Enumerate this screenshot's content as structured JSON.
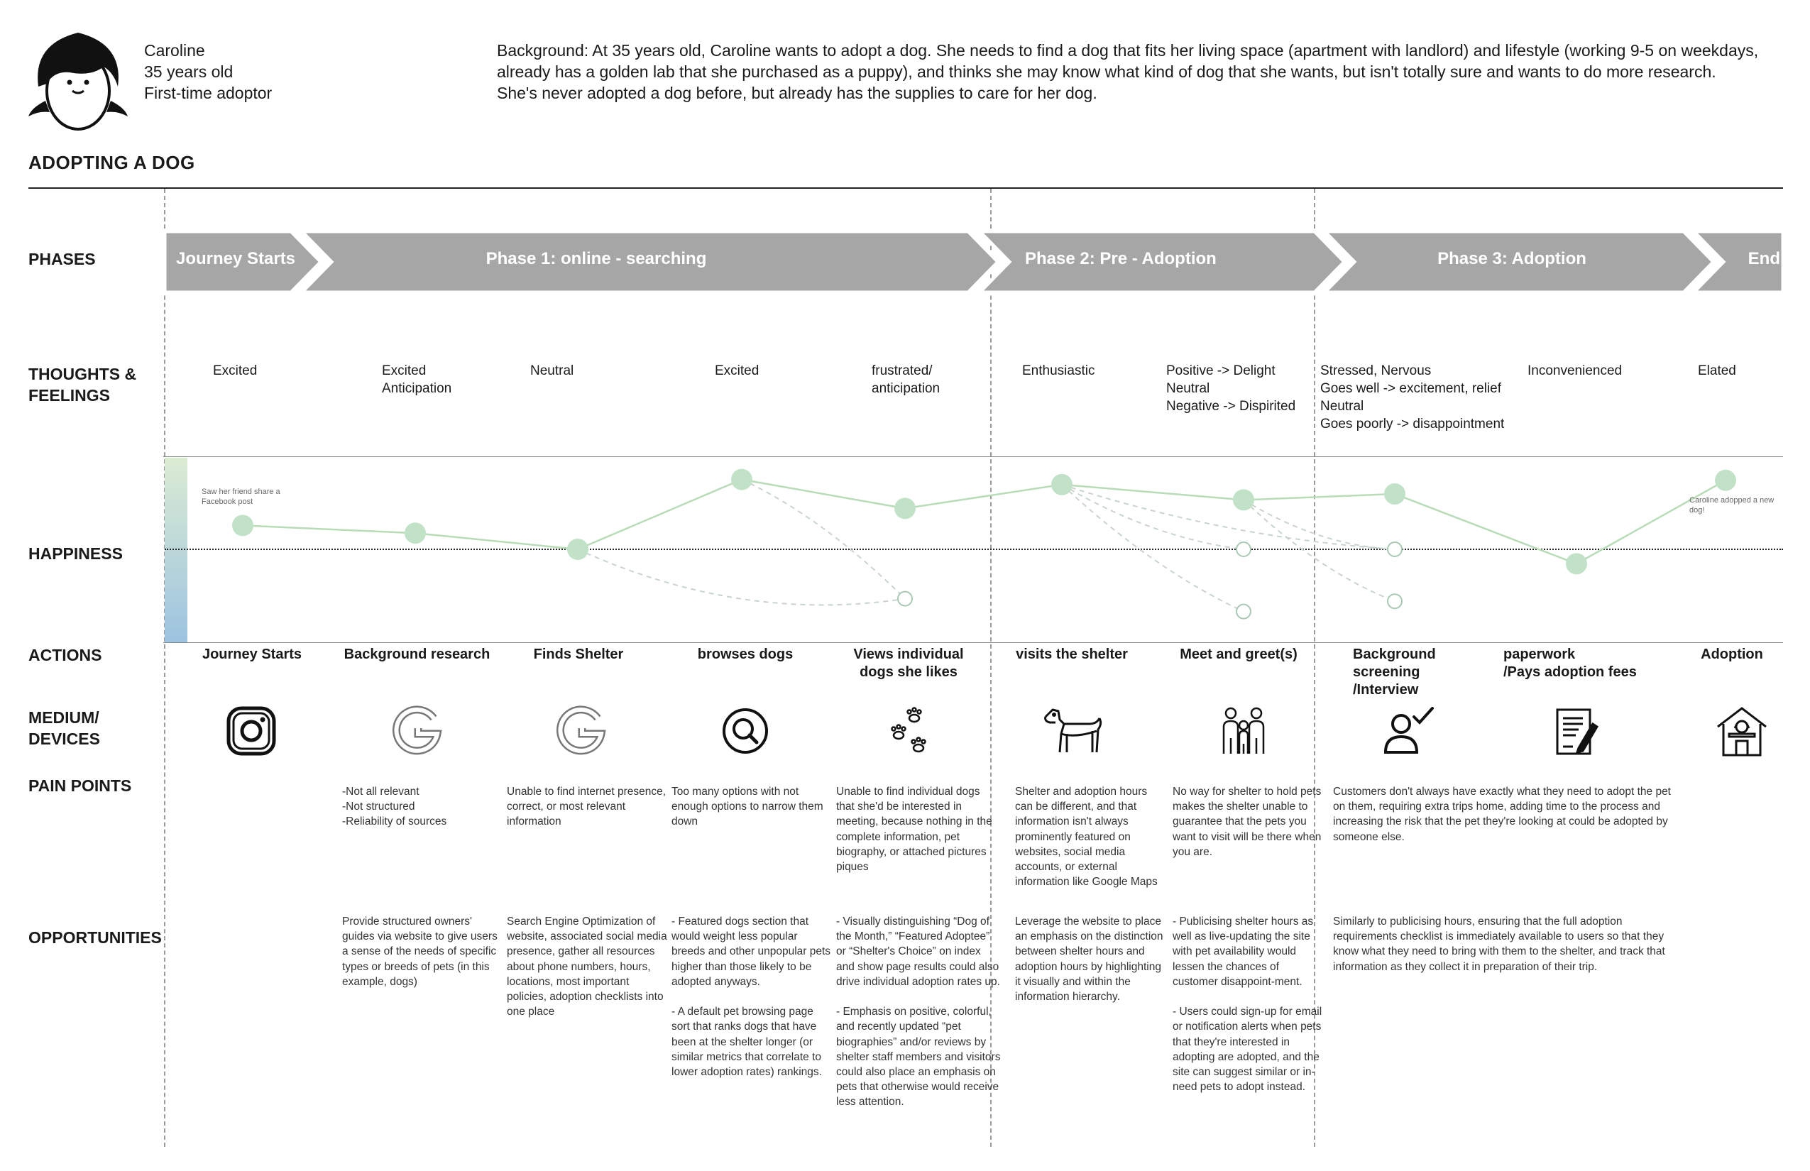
{
  "persona": {
    "name": "Caroline",
    "age": "35 years old",
    "role": "First-time adoptor",
    "background": "Background: At 35 years old, Caroline wants to adopt a dog. She needs to find a dog that fits her living space (apartment with landlord) and lifestyle (working 9-5 on weekdays, already has a golden lab that she purchased as a puppy), and thinks she may know what kind of dog that she wants, but isn't totally sure and wants to do more research. She's never adopted a dog before, but already has the supplies to care for her dog."
  },
  "title": "ADOPTING A DOG",
  "row_labels": {
    "phases": "PHASES",
    "thoughts_1": "THOUGHTS &",
    "thoughts_2": "FEELINGS",
    "happiness": "HAPPINESS",
    "actions": "ACTIONS",
    "medium_1": "MEDIUM/",
    "medium_2": "DEVICES",
    "pain_points": "PAIN POINTS",
    "opportunities": "OPPORTUNITIES"
  },
  "phases": [
    "Journey Starts",
    "Phase 1: online - searching",
    "Phase 2: Pre - Adoption",
    "Phase 3: Adoption",
    "End"
  ],
  "feelings": [
    "Excited",
    "Excited\nAnticipation",
    "Neutral",
    "Excited",
    "frustrated/\nanticipation",
    "Enthusiastic",
    "Positive -> Delight\nNeutral\nNegative -> Dispirited",
    "Stressed, Nervous\nGoes well -> excitement, relief\nNeutral\nGoes poorly -> disappointment",
    "Inconvenienced",
    "Elated"
  ],
  "happiness": {
    "notes": [
      "Saw her friend share a Facebook post",
      "Caroline adopped a new dog!"
    ],
    "main_path": [
      {
        "step": "Journey Starts",
        "level": 0.28
      },
      {
        "step": "Background research",
        "level": 0.19
      },
      {
        "step": "Finds Shelter",
        "level": 0.0
      },
      {
        "step": "browses dogs",
        "level": 0.82
      },
      {
        "step": "Views individual dogs she likes",
        "level": 0.48
      },
      {
        "step": "visits the shelter",
        "level": 0.76
      },
      {
        "step": "Meet and greet(s)",
        "level": 0.58
      },
      {
        "step": "Background screening /Interview",
        "level": 0.65
      },
      {
        "step": "paperwork /Pays adoption fees",
        "level": -0.17
      },
      {
        "step": "Adoption",
        "level": 0.81
      }
    ],
    "alt_points": [
      {
        "step": "Views individual dogs she likes",
        "level": -0.58
      },
      {
        "step": "Meet and greet(s)",
        "level": 0.0
      },
      {
        "step": "Meet and greet(s)",
        "level": -0.73
      },
      {
        "step": "Background screening /Interview",
        "level": 0.0
      },
      {
        "step": "Background screening /Interview",
        "level": -0.61
      }
    ]
  },
  "actions": [
    "Journey Starts",
    "Background research",
    "Finds Shelter",
    "browses dogs",
    "Views individual\ndogs she likes",
    "visits the shelter",
    "Meet and greet(s)",
    "Background\nscreening\n/Interview",
    "paperwork\n/Pays adoption fees",
    "Adoption"
  ],
  "medium_icons": [
    "instagram-icon",
    "google-icon",
    "google-icon",
    "search-icon",
    "paw-prints-icon",
    "dog-icon",
    "family-icon",
    "person-check-icon",
    "document-icon",
    "house-icon"
  ],
  "pain_points": [
    "-Not all relevant\n-Not structured\n-Reliability of sources",
    "Unable to find internet presence, correct, or most relevant information",
    "Too many options with not enough options to narrow them down",
    "Unable to find individual dogs that she'd be interested in meeting, because nothing in the complete information, pet biography, or attached pictures piques",
    "Shelter and adoption hours can be different, and that information isn't always prominently featured on websites, social media accounts, or external information like Google Maps",
    "No way for shelter to hold pets makes the shelter unable to guarantee that the pets you want to visit will be there when you are.",
    "Customers don't always have exactly what they need to adopt the pet on them, requiring extra trips home, adding time to the process and increasing the risk that the pet they're looking at could be adopted by someone else."
  ],
  "opportunities": [
    "Provide structured owners' guides via website to give users a sense of the needs of specific types or breeds of pets (in this example, dogs)",
    "Search Engine Optimization of website, associated social media presence, gather all resources about phone numbers, hours, locations, most important policies, adoption checklists into one place",
    "- Featured dogs section that would weight less popular breeds and other unpopular pets higher than those likely to be adopted anyways.\n\n- A default pet browsing page sort that ranks dogs that have been at the shelter longer (or similar metrics that correlate to lower adoption rates) rankings.",
    "- Visually distinguishing “Dog of the Month,” “Featured Adoptee” or “Shelter's Choice” on index and show page results could also drive individual adoption rates up.\n\n- Emphasis on positive, colorful, and recently updated “pet biographies” and/or reviews by shelter staff members and visitors could also place an emphasis on pets that otherwise would receive less attention.",
    "Leverage the website to place an emphasis on the distinction between shelter hours and adoption hours by highlighting it visually and within the information hierarchy.",
    "- Publicising shelter hours as well as live-updating the site with pet availability would lessen the chances of customer disappoint-ment.\n\n- Users could sign-up for email or notification alerts when pets that they're interested in adopting are adopted, and the site can suggest similar or in-need pets to adopt instead.",
    "Similarly to publicising hours, ensuring that the full adoption requirements checklist is immediately available to users so that they know what they need to bring with them to the shelter, and track that information as they collect it in preparation of their trip."
  ],
  "colors": {
    "phase_band": "#a6a6a6",
    "main_line": "#b7dcb7",
    "dot_fill": "#c2e2c8",
    "alt_line": "#c8d4cc",
    "gradient_top": "#dcecd3",
    "gradient_bottom": "#9cc3e0"
  }
}
